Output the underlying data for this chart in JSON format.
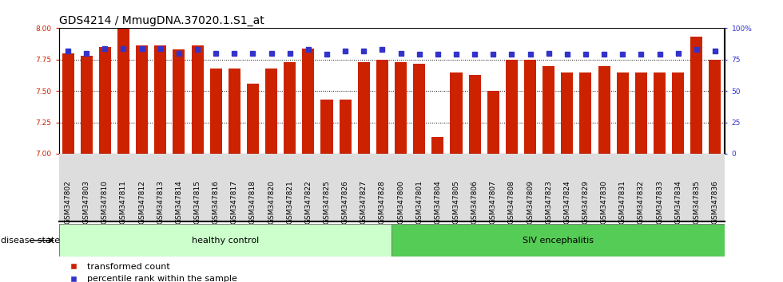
{
  "title": "GDS4214 / MmugDNA.37020.1.S1_at",
  "samples": [
    "GSM347802",
    "GSM347803",
    "GSM347810",
    "GSM347811",
    "GSM347812",
    "GSM347813",
    "GSM347814",
    "GSM347815",
    "GSM347816",
    "GSM347817",
    "GSM347818",
    "GSM347820",
    "GSM347821",
    "GSM347822",
    "GSM347825",
    "GSM347826",
    "GSM347827",
    "GSM347828",
    "GSM347800",
    "GSM347801",
    "GSM347804",
    "GSM347805",
    "GSM347806",
    "GSM347807",
    "GSM347808",
    "GSM347809",
    "GSM347823",
    "GSM347824",
    "GSM347829",
    "GSM347830",
    "GSM347831",
    "GSM347832",
    "GSM347833",
    "GSM347834",
    "GSM347835",
    "GSM347836"
  ],
  "bar_values": [
    7.8,
    7.78,
    7.85,
    8.0,
    7.86,
    7.86,
    7.83,
    7.86,
    7.68,
    7.68,
    7.56,
    7.68,
    7.73,
    7.84,
    7.43,
    7.43,
    7.73,
    7.75,
    7.73,
    7.72,
    7.13,
    7.65,
    7.63,
    7.5,
    7.75,
    7.75,
    7.7,
    7.65,
    7.65,
    7.7,
    7.65,
    7.65,
    7.65,
    7.65,
    7.93,
    7.75
  ],
  "percentile_values": [
    82,
    80,
    84,
    84,
    84,
    84,
    80,
    83,
    80,
    80,
    80,
    80,
    80,
    83,
    79,
    82,
    82,
    83,
    80,
    79,
    79,
    79,
    79,
    79,
    79,
    79,
    80,
    79,
    79,
    79,
    79,
    79,
    79,
    80,
    83,
    82
  ],
  "n_healthy": 18,
  "n_siv": 18,
  "ylim_left": [
    7.0,
    8.0
  ],
  "ylim_right": [
    0,
    100
  ],
  "yticks_left": [
    7.0,
    7.25,
    7.5,
    7.75,
    8.0
  ],
  "yticks_right": [
    0,
    25,
    50,
    75,
    100
  ],
  "bar_color": "#CC2200",
  "percentile_color": "#3333CC",
  "healthy_label": "healthy control",
  "siv_label": "SIV encephalitis",
  "disease_state_label": "disease state",
  "legend_bar": "transformed count",
  "legend_pct": "percentile rank within the sample",
  "healthy_bg": "#CCFFCC",
  "siv_bg": "#55CC55",
  "xlabel_bg": "#DDDDDD",
  "title_fontsize": 10,
  "tick_fontsize": 6.5,
  "label_fontsize": 8,
  "disease_fontsize": 8
}
